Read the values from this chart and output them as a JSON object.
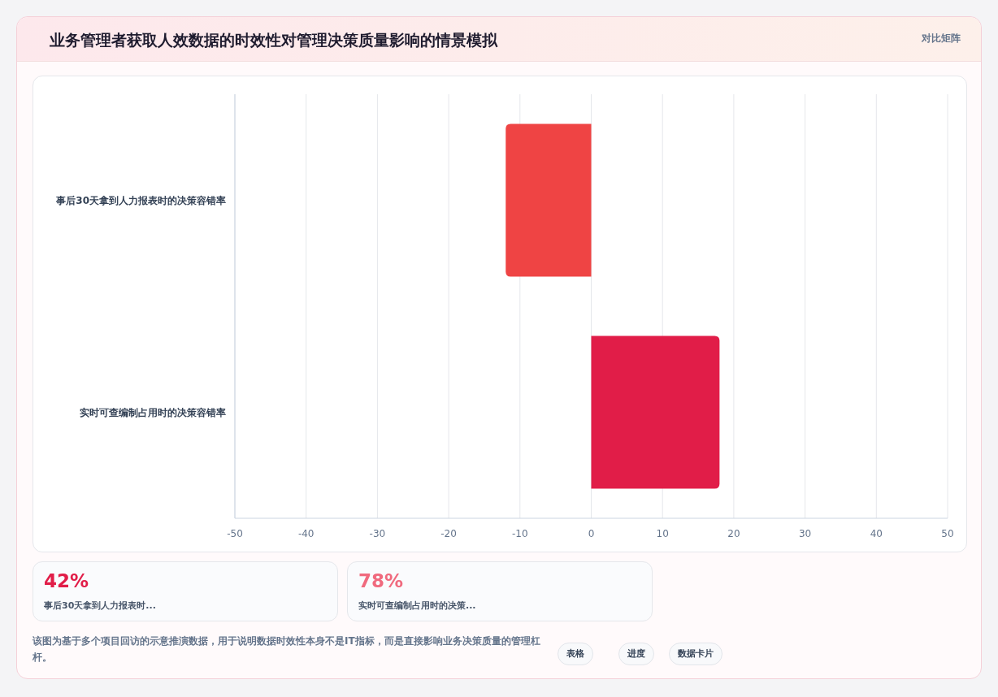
{
  "chart_data": {
    "type": "bar",
    "orientation": "horizontal",
    "title": "业务管理者获取人效数据的时效性对管理决策质量影响的情景模拟",
    "categories": [
      "事后30天拿到人力报表时的决策容错率",
      "实时可查编制占用时的决策容错率"
    ],
    "values": [
      -12,
      18
    ],
    "colors": [
      "#ef4444",
      "#e11d48"
    ],
    "xlim": [
      -50,
      50
    ],
    "xticks": [
      -50,
      -40,
      -30,
      -20,
      -10,
      0,
      10,
      20,
      30,
      40,
      50
    ],
    "grid": "x",
    "annotations": [
      "对比矩阵",
      "42%",
      "事后30天拿到人力报表时...",
      "78%",
      "实时可查编制占用时的决策...",
      "该图为基于多个项目回访的示意推演数据，用于说明数据时效性本身不是IT指标，而是直接影响业务决策质量的管理杠杆。",
      "表格",
      "进度",
      "数据卡片"
    ]
  }
}
